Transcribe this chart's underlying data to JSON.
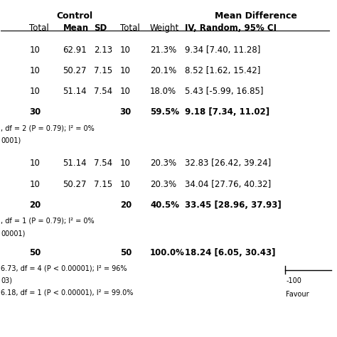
{
  "group1_rows": [
    {
      "total": "10",
      "mean": "62.91",
      "sd": "2.13",
      "ctrl_total": "10",
      "weight": "21.3%",
      "md": "9.34 [7.40, 11.28]"
    },
    {
      "total": "10",
      "mean": "50.27",
      "sd": "7.15",
      "ctrl_total": "10",
      "weight": "20.1%",
      "md": "8.52 [1.62, 15.42]"
    },
    {
      "total": "10",
      "mean": "51.14",
      "sd": "7.54",
      "ctrl_total": "10",
      "weight": "18.0%",
      "md": "5.43 [-5.99, 16.85]"
    }
  ],
  "group1_subtotal": {
    "total": "30",
    "ctrl_total": "30",
    "weight": "59.5%",
    "md": "9.18 [7.34, 11.02]"
  },
  "group1_stat1": ", df = 2 (P = 0.79); I² = 0%",
  "group1_stat2": "0001)",
  "group2_rows": [
    {
      "total": "10",
      "mean": "51.14",
      "sd": "7.54",
      "ctrl_total": "10",
      "weight": "20.3%",
      "md": "32.83 [26.42, 39.24]"
    },
    {
      "total": "10",
      "mean": "50.27",
      "sd": "7.15",
      "ctrl_total": "10",
      "weight": "20.3%",
      "md": "34.04 [27.76, 40.32]"
    }
  ],
  "group2_subtotal": {
    "total": "20",
    "ctrl_total": "20",
    "weight": "40.5%",
    "md": "33.45 [28.96, 37.93]"
  },
  "group2_stat1": ", df = 1 (P = 0.79); I² = 0%",
  "group2_stat2": "00001)",
  "total_row": {
    "total": "50",
    "ctrl_total": "50",
    "weight": "100.0%",
    "md": "18.24 [6.05, 30.43]"
  },
  "stat_line1": "6.73, df = 4 (P < 0.00001); I² = 96%",
  "stat_line2": "03)",
  "stat_line3": "6.18, df = 1 (P < 0.00001), I² = 99.0%",
  "scale_label": "-100",
  "favour_label": "Favour",
  "bg_color": "#ffffff",
  "text_color": "#000000",
  "font_size": 8.5,
  "bold_font_size": 9.0,
  "col_x": {
    "total": 0.085,
    "mean": 0.185,
    "sd": 0.278,
    "ctrl_total": 0.355,
    "weight": 0.445,
    "md": 0.548
  }
}
